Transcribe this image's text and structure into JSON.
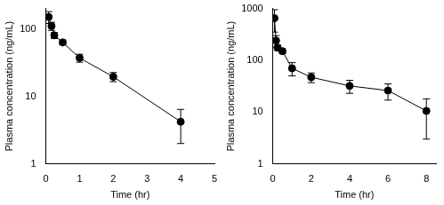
{
  "chart_data": [
    {
      "type": "line",
      "x": [
        0.083,
        0.167,
        0.25,
        0.5,
        1,
        2,
        4
      ],
      "series": [
        {
          "values": [
            150,
            110,
            80,
            63,
            37,
            19.5,
            4.2
          ],
          "errors": [
            30,
            15,
            8,
            5,
            5,
            3,
            2.2
          ],
          "color": "#000000",
          "marker": "circle"
        }
      ],
      "x_label": "Time (hr)",
      "y_label": "Plasma concentration (ng/mL)",
      "xlim": [
        0,
        5
      ],
      "xticks": [
        0,
        1,
        2,
        3,
        4,
        5
      ],
      "ylim": [
        1,
        200
      ],
      "yticks": [
        1,
        10,
        100
      ],
      "log": "y",
      "grid": false
    },
    {
      "type": "line",
      "x": [
        0.083,
        0.167,
        0.25,
        0.5,
        1,
        2,
        4,
        6,
        8
      ],
      "series": [
        {
          "values": [
            650,
            240,
            175,
            150,
            70,
            47,
            32,
            26,
            10.5
          ],
          "errors": [
            300,
            60,
            20,
            15,
            20,
            10,
            9,
            9,
            7.5
          ],
          "color": "#000000",
          "marker": "circle"
        }
      ],
      "x_label": "Time (hr)",
      "y_label": "Plasma concentration (ng/mL)",
      "xlim": [
        0,
        8.5
      ],
      "xticks": [
        0,
        2,
        4,
        6,
        8
      ],
      "ylim": [
        1,
        1000
      ],
      "yticks": [
        1,
        10,
        100,
        1000
      ],
      "log": "y",
      "grid": false
    }
  ]
}
